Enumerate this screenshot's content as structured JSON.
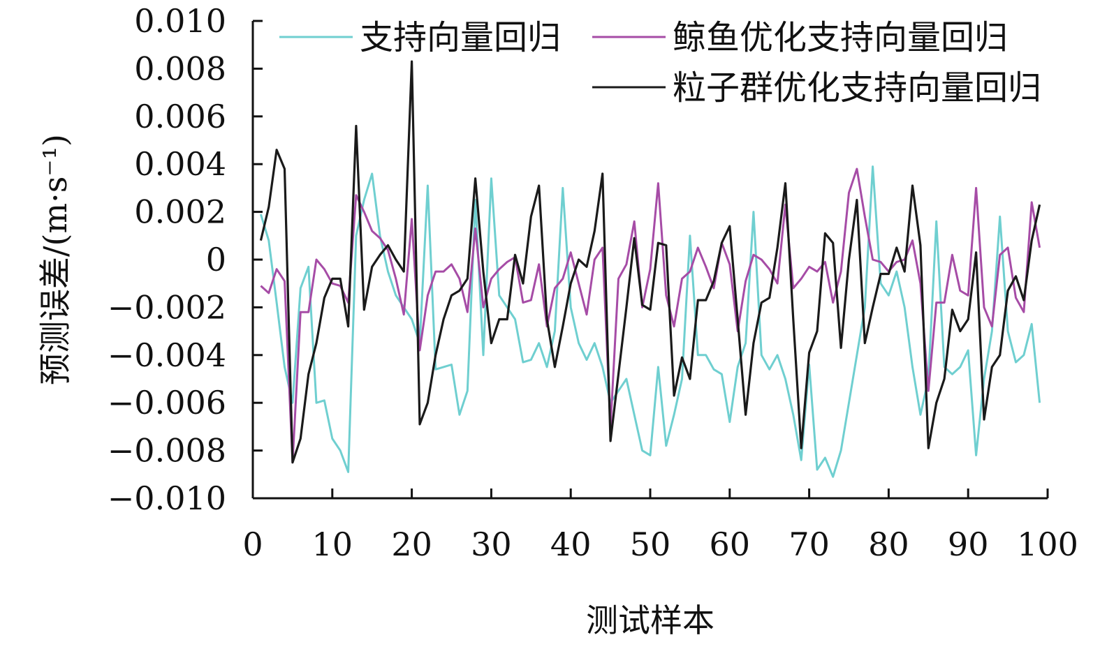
{
  "chart_data": {
    "type": "line",
    "xlabel": "测试样本",
    "ylabel": "预测误差/(m·s⁻¹)",
    "xlim": [
      0,
      100
    ],
    "ylim": [
      -0.01,
      0.01
    ],
    "xticks": [
      "0",
      "10",
      "20",
      "30",
      "40",
      "50",
      "60",
      "70",
      "80",
      "90",
      "100"
    ],
    "yticks": [
      "0.010",
      "0.008",
      "0.006",
      "0.004",
      "0.002",
      "0",
      "−0.002",
      "−0.004",
      "−0.006",
      "−0.008",
      "−0.010"
    ],
    "ytick_values": [
      0.01,
      0.008,
      0.006,
      0.004,
      0.002,
      0,
      -0.002,
      -0.004,
      -0.006,
      -0.008,
      -0.01
    ],
    "grid": false,
    "legend_position": "top",
    "series": [
      {
        "name": "支持向量回归",
        "color": "#6fcfd0",
        "values": [
          0.0019,
          0.0008,
          -0.0018,
          -0.0045,
          -0.006,
          -0.0012,
          -0.0003,
          -0.006,
          -0.0059,
          -0.0075,
          -0.008,
          -0.0089,
          0.001,
          0.0025,
          0.0036,
          0.001,
          -0.0005,
          -0.0015,
          -0.002,
          -0.0025,
          -0.0035,
          0.0031,
          -0.0046,
          -0.0045,
          -0.0044,
          -0.0065,
          -0.0055,
          0.0025,
          -0.004,
          0.0034,
          -0.0015,
          -0.002,
          -0.0025,
          -0.0043,
          -0.0042,
          -0.0035,
          -0.0045,
          -0.003,
          0.003,
          -0.002,
          -0.0035,
          -0.0042,
          -0.0035,
          -0.0045,
          -0.006,
          -0.0055,
          -0.005,
          -0.0065,
          -0.008,
          -0.0082,
          -0.0045,
          -0.0078,
          -0.0065,
          -0.005,
          0.001,
          -0.004,
          -0.004,
          -0.0046,
          -0.0048,
          -0.0068,
          -0.0045,
          -0.0035,
          0.002,
          -0.004,
          -0.0046,
          -0.004,
          -0.005,
          -0.0065,
          -0.0084,
          -0.0044,
          -0.0088,
          -0.0083,
          -0.0091,
          -0.008,
          -0.006,
          -0.004,
          -0.002,
          0.0039,
          -0.001,
          -0.0015,
          -0.0005,
          -0.002,
          -0.0045,
          -0.0065,
          -0.005,
          0.0016,
          -0.0045,
          -0.0048,
          -0.0045,
          -0.0038,
          -0.0082,
          -0.005,
          -0.003,
          0.0018,
          -0.003,
          -0.0043,
          -0.004,
          -0.0027,
          -0.006
        ]
      },
      {
        "name": "鲸鱼优化支持向量回归",
        "color": "#a64ca6",
        "values": [
          -0.0011,
          -0.0014,
          -0.0004,
          -0.0009,
          -0.0085,
          -0.0022,
          -0.0022,
          0.0,
          -0.0004,
          -0.001,
          -0.0011,
          -0.0018,
          0.0027,
          0.002,
          0.0012,
          0.0009,
          0.0004,
          -0.0008,
          -0.0023,
          0.0017,
          -0.0038,
          -0.0015,
          -0.0005,
          -0.0005,
          -0.0002,
          -0.0008,
          -0.0022,
          0.0013,
          -0.002,
          -0.0008,
          -0.0004,
          -0.0001,
          0.0001,
          -0.0018,
          -0.0017,
          -0.0002,
          -0.0028,
          -0.0012,
          -0.0008,
          0.0003,
          -0.001,
          -0.0023,
          0.0,
          0.0005,
          -0.007,
          -0.0008,
          -0.0002,
          0.0016,
          -0.002,
          -0.0004,
          0.0032,
          -0.0015,
          -0.0028,
          -0.0008,
          -0.0005,
          0.0005,
          -0.0003,
          -0.0012,
          0.0007,
          -0.0002,
          -0.003,
          -0.0009,
          0.0002,
          0.0,
          -0.0004,
          -0.001,
          0.0023,
          -0.0012,
          -0.0008,
          -0.0003,
          -0.0005,
          -0.0001,
          -0.0018,
          -0.0005,
          0.0028,
          0.0038,
          0.0018,
          0.0,
          -0.0001,
          -0.0005,
          -0.0001,
          0.0,
          0.0008,
          -0.001,
          -0.0055,
          -0.0018,
          -0.0018,
          0.0002,
          -0.0013,
          -0.0015,
          0.003,
          -0.002,
          -0.0028,
          0.0002,
          0.0005,
          -0.0016,
          -0.0022,
          0.0024,
          0.0005
        ]
      },
      {
        "name": "粒子群优化支持向量回归",
        "color": "#1a1a1a",
        "values": [
          0.0008,
          0.0022,
          0.0046,
          0.0038,
          -0.0085,
          -0.0075,
          -0.0048,
          -0.0035,
          -0.0016,
          -0.0008,
          -0.0008,
          -0.0028,
          0.0056,
          -0.0021,
          -0.0003,
          0.0002,
          0.0006,
          0.0,
          -0.0005,
          0.0083,
          -0.0069,
          -0.006,
          -0.004,
          -0.0025,
          -0.0015,
          -0.0013,
          -0.0008,
          0.0034,
          -0.0005,
          -0.0035,
          -0.0025,
          -0.0025,
          0.0002,
          -0.001,
          0.0018,
          0.0031,
          -0.0025,
          -0.0045,
          -0.0028,
          -0.001,
          0.0,
          -0.0003,
          0.0012,
          0.0036,
          -0.0076,
          -0.0048,
          -0.002,
          0.0009,
          -0.0019,
          -0.0021,
          0.0007,
          0.0006,
          -0.0057,
          -0.0041,
          -0.005,
          -0.0017,
          -0.0017,
          -0.0009,
          0.0007,
          0.0014,
          -0.0025,
          -0.0065,
          -0.0035,
          -0.0018,
          -0.0016,
          0.0005,
          0.0032,
          -0.0025,
          -0.0079,
          -0.0039,
          -0.003,
          0.0011,
          0.0007,
          -0.0037,
          0.0,
          0.0025,
          -0.0035,
          -0.002,
          -0.0006,
          -0.0006,
          0.0005,
          -0.0005,
          0.0031,
          0.0006,
          -0.0079,
          -0.006,
          -0.005,
          -0.0021,
          -0.003,
          -0.0025,
          0.0003,
          -0.0067,
          -0.0045,
          -0.004,
          -0.0013,
          -0.0007,
          -0.0017,
          0.0008,
          0.0023
        ]
      }
    ]
  }
}
